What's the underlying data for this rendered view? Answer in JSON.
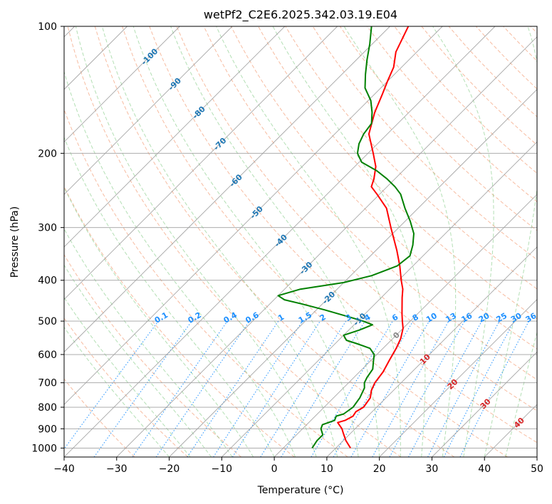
{
  "chart_data": {
    "type": "line",
    "title": "wetPf2_C2E6.2025.342.03.19.E04",
    "xlabel": "Temperature (°C)",
    "ylabel": "Pressure (hPa)",
    "xlim": [
      -40,
      50
    ],
    "ylim": [
      1050,
      100
    ],
    "x_ticks": [
      "−40",
      "−30",
      "−20",
      "−10",
      "0",
      "10",
      "20",
      "30",
      "40",
      "50"
    ],
    "y_ticks": [
      "100",
      "200",
      "300",
      "400",
      "500",
      "600",
      "700",
      "800",
      "900",
      "1000"
    ],
    "colors": {
      "temperature": "#ff0000",
      "dewpoint": "#008000",
      "isotherm": "#1f77b4",
      "mixing": "#1e90ff",
      "moist": "#d62728"
    },
    "series": [
      {
        "name": "Temperature",
        "color": "#ff0000",
        "points": [
          [
            1000,
            12.8
          ],
          [
            960,
            10.5
          ],
          [
            920,
            8.5
          ],
          [
            900,
            7.5
          ],
          [
            870,
            5.5
          ],
          [
            860,
            6.5
          ],
          [
            840,
            7.2
          ],
          [
            820,
            6.9
          ],
          [
            800,
            7.5
          ],
          [
            760,
            7.0
          ],
          [
            730,
            5.8
          ],
          [
            700,
            5.0
          ],
          [
            660,
            4.5
          ],
          [
            620,
            3.5
          ],
          [
            580,
            2.5
          ],
          [
            550,
            1.5
          ],
          [
            520,
            0.0
          ],
          [
            500,
            -1.5
          ],
          [
            480,
            -3.0
          ],
          [
            440,
            -6.0
          ],
          [
            420,
            -7.5
          ],
          [
            400,
            -9.5
          ],
          [
            370,
            -12.5
          ],
          [
            340,
            -16.0
          ],
          [
            300,
            -21.5
          ],
          [
            270,
            -26.0
          ],
          [
            250,
            -30.5
          ],
          [
            240,
            -33.0
          ],
          [
            230,
            -34.0
          ],
          [
            215,
            -36.0
          ],
          [
            200,
            -39.0
          ],
          [
            180,
            -43.5
          ],
          [
            160,
            -46.5
          ],
          [
            145,
            -48.5
          ],
          [
            135,
            -50.0
          ],
          [
            125,
            -51.5
          ],
          [
            115,
            -54.0
          ],
          [
            100,
            -56.5
          ]
        ]
      },
      {
        "name": "Dewpoint",
        "color": "#008000",
        "points": [
          [
            1000,
            5.5
          ],
          [
            960,
            5.0
          ],
          [
            930,
            5.0
          ],
          [
            900,
            3.5
          ],
          [
            880,
            3.0
          ],
          [
            860,
            4.5
          ],
          [
            840,
            4.0
          ],
          [
            830,
            5.0
          ],
          [
            800,
            5.5
          ],
          [
            760,
            5.0
          ],
          [
            720,
            4.0
          ],
          [
            700,
            3.0
          ],
          [
            680,
            2.5
          ],
          [
            650,
            2.0
          ],
          [
            620,
            0.5
          ],
          [
            600,
            -0.5
          ],
          [
            580,
            -2.5
          ],
          [
            565,
            -6.0
          ],
          [
            555,
            -8.5
          ],
          [
            540,
            -10.0
          ],
          [
            525,
            -8.0
          ],
          [
            510,
            -6.5
          ],
          [
            500,
            -9.0
          ],
          [
            490,
            -12.0
          ],
          [
            470,
            -18.5
          ],
          [
            455,
            -24.0
          ],
          [
            445,
            -28.0
          ],
          [
            435,
            -30.0
          ],
          [
            420,
            -27.0
          ],
          [
            405,
            -20.0
          ],
          [
            390,
            -16.0
          ],
          [
            370,
            -13.0
          ],
          [
            350,
            -12.5
          ],
          [
            330,
            -14.0
          ],
          [
            310,
            -16.0
          ],
          [
            290,
            -19.0
          ],
          [
            270,
            -22.5
          ],
          [
            250,
            -26.0
          ],
          [
            240,
            -28.5
          ],
          [
            230,
            -31.5
          ],
          [
            220,
            -35.0
          ],
          [
            210,
            -39.5
          ],
          [
            200,
            -42.0
          ],
          [
            190,
            -43.5
          ],
          [
            180,
            -44.5
          ],
          [
            170,
            -45.0
          ],
          [
            160,
            -47.0
          ],
          [
            150,
            -49.5
          ],
          [
            140,
            -53.0
          ],
          [
            130,
            -55.5
          ],
          [
            120,
            -58.0
          ],
          [
            110,
            -60.5
          ],
          [
            100,
            -63.5
          ]
        ]
      }
    ],
    "isotherm_labels": [
      "-100",
      "-90",
      "-80",
      "-70",
      "-60",
      "-50",
      "-40",
      "-30",
      "-20",
      "-10"
    ],
    "freezing_label": "0",
    "moist_adiabat_labels": [
      "10",
      "20",
      "30",
      "40"
    ],
    "mixing_ratio_labels": [
      "0.1",
      "0.2",
      "0.4",
      "0.6",
      "1",
      "1.5",
      "2",
      "3",
      "4",
      "6",
      "8",
      "10",
      "13",
      "16",
      "20",
      "25",
      "30",
      "36"
    ]
  }
}
